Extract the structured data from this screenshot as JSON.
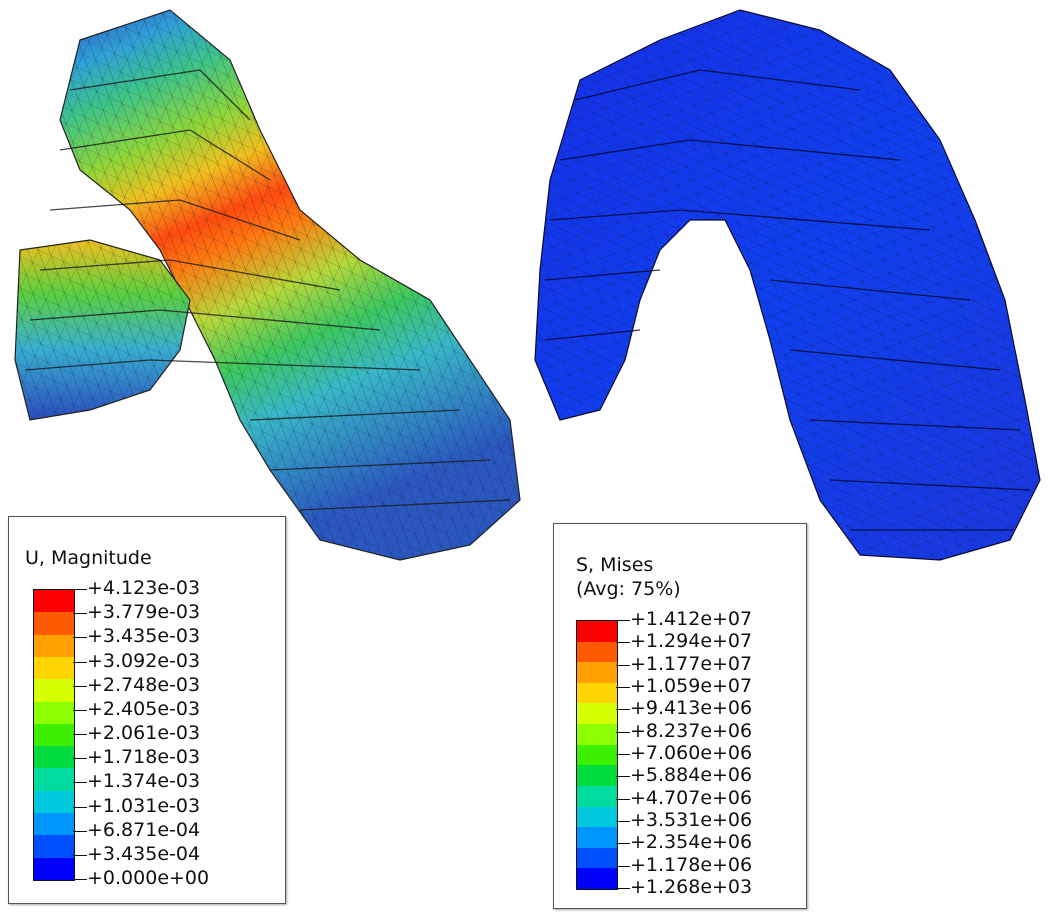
{
  "displacement_plot": {
    "legend_title": "U, Magnitude",
    "legend_subtitle": "",
    "labels": [
      "+4.123e-03",
      "+3.779e-03",
      "+3.435e-03",
      "+3.092e-03",
      "+2.748e-03",
      "+2.405e-03",
      "+2.061e-03",
      "+1.718e-03",
      "+1.374e-03",
      "+1.031e-03",
      "+6.871e-04",
      "+3.435e-04",
      "+0.000e+00"
    ],
    "colors": [
      "#ff0000",
      "#ff5a00",
      "#ffa000",
      "#ffd400",
      "#d6ff00",
      "#8cff00",
      "#3cf000",
      "#00dc3c",
      "#00dca0",
      "#00c8dc",
      "#0096ff",
      "#0050ff",
      "#0000ff"
    ]
  },
  "stress_plot": {
    "legend_title": "S, Mises",
    "legend_subtitle": "(Avg: 75%)",
    "labels": [
      "+1.412e+07",
      "+1.294e+07",
      "+1.177e+07",
      "+1.059e+07",
      "+9.413e+06",
      "+8.237e+06",
      "+7.060e+06",
      "+5.884e+06",
      "+4.707e+06",
      "+3.531e+06",
      "+2.354e+06",
      "+1.178e+06",
      "+1.268e+03"
    ],
    "colors": [
      "#ff0000",
      "#ff5a00",
      "#ffa000",
      "#ffd400",
      "#d6ff00",
      "#8cff00",
      "#3cf000",
      "#00dc3c",
      "#00dca0",
      "#00c8dc",
      "#0096ff",
      "#0050ff",
      "#0000ff"
    ]
  }
}
